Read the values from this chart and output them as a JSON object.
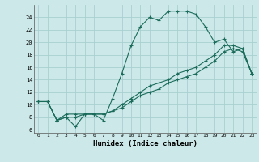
{
  "xlabel": "Humidex (Indice chaleur)",
  "ylabel": "",
  "bg_color": "#cce8e8",
  "grid_color": "#a8d0d0",
  "line_color": "#1a6b5a",
  "xlim": [
    -0.5,
    23.5
  ],
  "ylim": [
    5.5,
    26.0
  ],
  "xticks": [
    0,
    1,
    2,
    3,
    4,
    5,
    6,
    7,
    8,
    9,
    10,
    11,
    12,
    13,
    14,
    15,
    16,
    17,
    18,
    19,
    20,
    21,
    22,
    23
  ],
  "yticks": [
    6,
    8,
    10,
    12,
    14,
    16,
    18,
    20,
    22,
    24
  ],
  "line1_x": [
    0,
    1,
    2,
    3,
    4,
    5,
    6,
    7,
    8,
    9,
    10,
    11,
    12,
    13,
    14,
    15,
    16,
    17,
    18,
    19,
    20,
    21,
    22,
    23
  ],
  "line1_y": [
    10.5,
    10.5,
    7.5,
    8.0,
    6.5,
    8.5,
    8.5,
    7.5,
    11.0,
    15.0,
    19.5,
    22.5,
    24.0,
    23.5,
    25.0,
    25.0,
    25.0,
    24.5,
    22.5,
    20.0,
    20.5,
    18.5,
    19.0,
    15.0
  ],
  "line2_x": [
    0,
    1,
    2,
    3,
    4,
    5,
    6,
    7,
    8,
    9,
    10,
    11,
    12,
    13,
    14,
    15,
    16,
    17,
    18,
    19,
    20,
    21,
    22,
    23
  ],
  "line2_y": [
    10.5,
    10.5,
    7.5,
    8.5,
    8.5,
    8.5,
    8.5,
    8.5,
    9.0,
    10.0,
    11.0,
    12.0,
    13.0,
    13.5,
    14.0,
    15.0,
    15.5,
    16.0,
    17.0,
    18.0,
    19.5,
    19.5,
    19.0,
    15.0
  ],
  "line3_x": [
    0,
    1,
    2,
    3,
    4,
    5,
    6,
    7,
    8,
    9,
    10,
    11,
    12,
    13,
    14,
    15,
    16,
    17,
    18,
    19,
    20,
    21,
    22,
    23
  ],
  "line3_y": [
    10.5,
    10.5,
    7.5,
    8.0,
    8.0,
    8.5,
    8.5,
    8.5,
    9.0,
    9.5,
    10.5,
    11.5,
    12.0,
    12.5,
    13.5,
    14.0,
    14.5,
    15.0,
    16.0,
    17.0,
    18.5,
    19.0,
    18.5,
    15.0
  ]
}
